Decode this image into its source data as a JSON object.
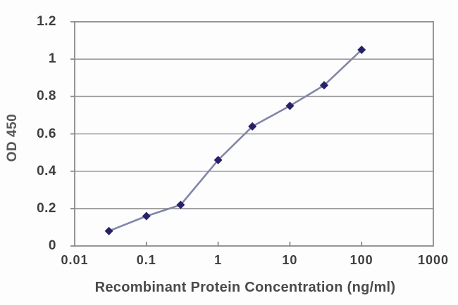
{
  "figure": {
    "description": "ELISA standard curve line chart"
  },
  "chart_data": {
    "type": "line",
    "title": "",
    "x": [
      0.03,
      0.1,
      0.3,
      1,
      3,
      10,
      30,
      100
    ],
    "y": [
      0.08,
      0.16,
      0.22,
      0.46,
      0.64,
      0.75,
      0.86,
      1.05
    ],
    "xlabel": "Recombinant Protein Concentration (ng/ml)",
    "ylabel": "OD 450",
    "x_scale": "log",
    "xlim": [
      0.01,
      1000
    ],
    "ylim": [
      0,
      1.2
    ],
    "x_ticks": [
      "0.01",
      "0.1",
      "1",
      "10",
      "100",
      "1000"
    ],
    "y_ticks": [
      "0",
      "0.2",
      "0.4",
      "0.6",
      "0.8",
      "1",
      "1.2"
    ],
    "grid": "horizontal",
    "legend": "none",
    "marker": "diamond",
    "colors": {
      "line": "#8186a6",
      "marker": "#262168",
      "grid": "#9b9b9b",
      "frame": "#8a8a8a",
      "tick_text": "#3e3e3e",
      "axis_title_text": "#4a4a4a",
      "background": "#fdfdfd"
    }
  }
}
